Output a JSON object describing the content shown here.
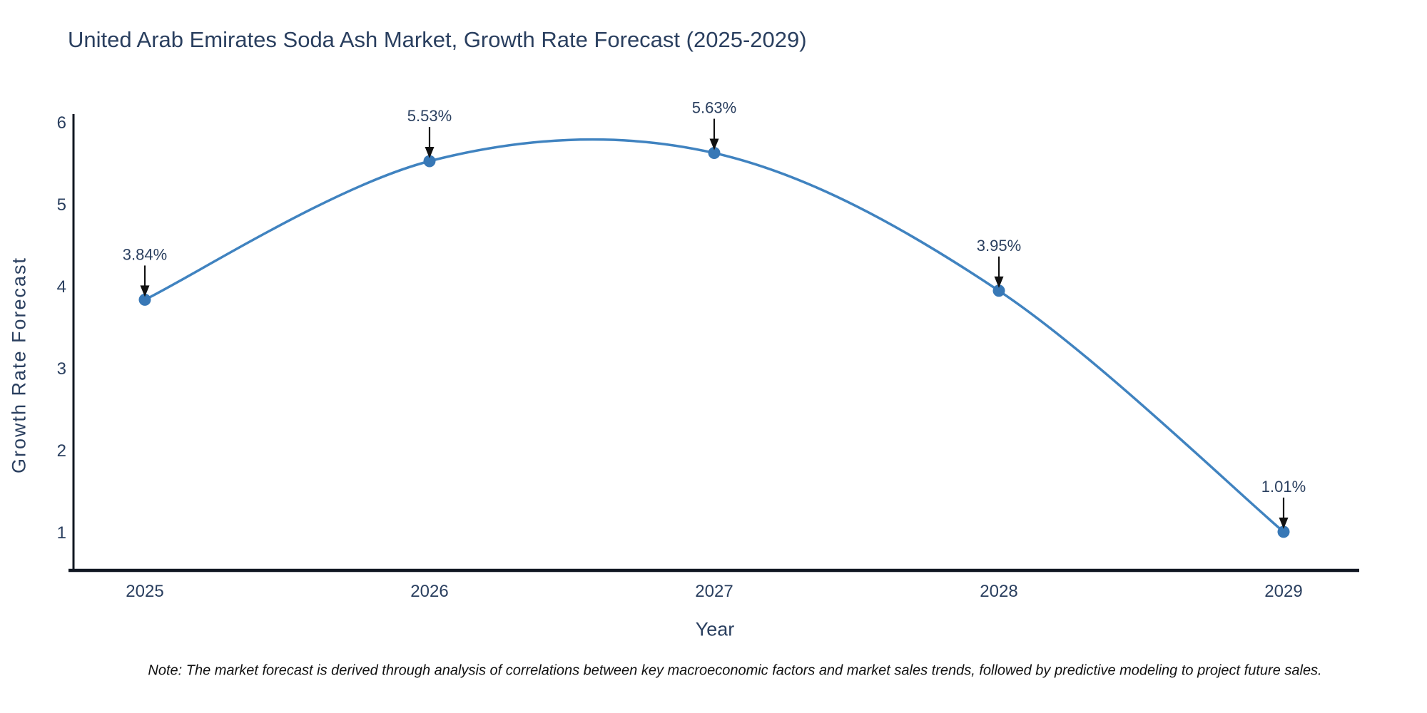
{
  "title": "United Arab Emirates Soda Ash Market, Growth Rate Forecast (2025-2029)",
  "note": "Note: The market forecast is derived through analysis of correlations between key macroeconomic factors and market sales trends, followed by predictive modeling to project future sales.",
  "chart_data": {
    "type": "line",
    "title": "United Arab Emirates Soda Ash Market, Growth Rate Forecast (2025-2029)",
    "xlabel": "Year",
    "ylabel": "Growth Rate Forecast",
    "x": [
      2025,
      2026,
      2027,
      2028,
      2029
    ],
    "xtick_labels": [
      "2025",
      "2026",
      "2027",
      "2028",
      "2029"
    ],
    "series": [
      {
        "name": "Growth Rate Forecast",
        "values": [
          3.84,
          5.53,
          5.63,
          3.95,
          1.01
        ]
      }
    ],
    "point_labels": [
      "3.84%",
      "5.53%",
      "5.63%",
      "3.95%",
      "1.01%"
    ],
    "yticks": [
      1,
      2,
      3,
      4,
      5,
      6
    ],
    "ylim": [
      0.5,
      6.1
    ],
    "xlim": [
      2024.73,
      2029.27
    ],
    "line_shape": "spline",
    "grid": false,
    "legend_position": "none",
    "colors": {
      "line": "#4083c0",
      "marker": "#3878b6",
      "axis": "#111722",
      "text": "#2a3f5f",
      "annotation_text": "#2a3f5f",
      "annotation_arrow": "#111111",
      "background": "#ffffff"
    }
  }
}
